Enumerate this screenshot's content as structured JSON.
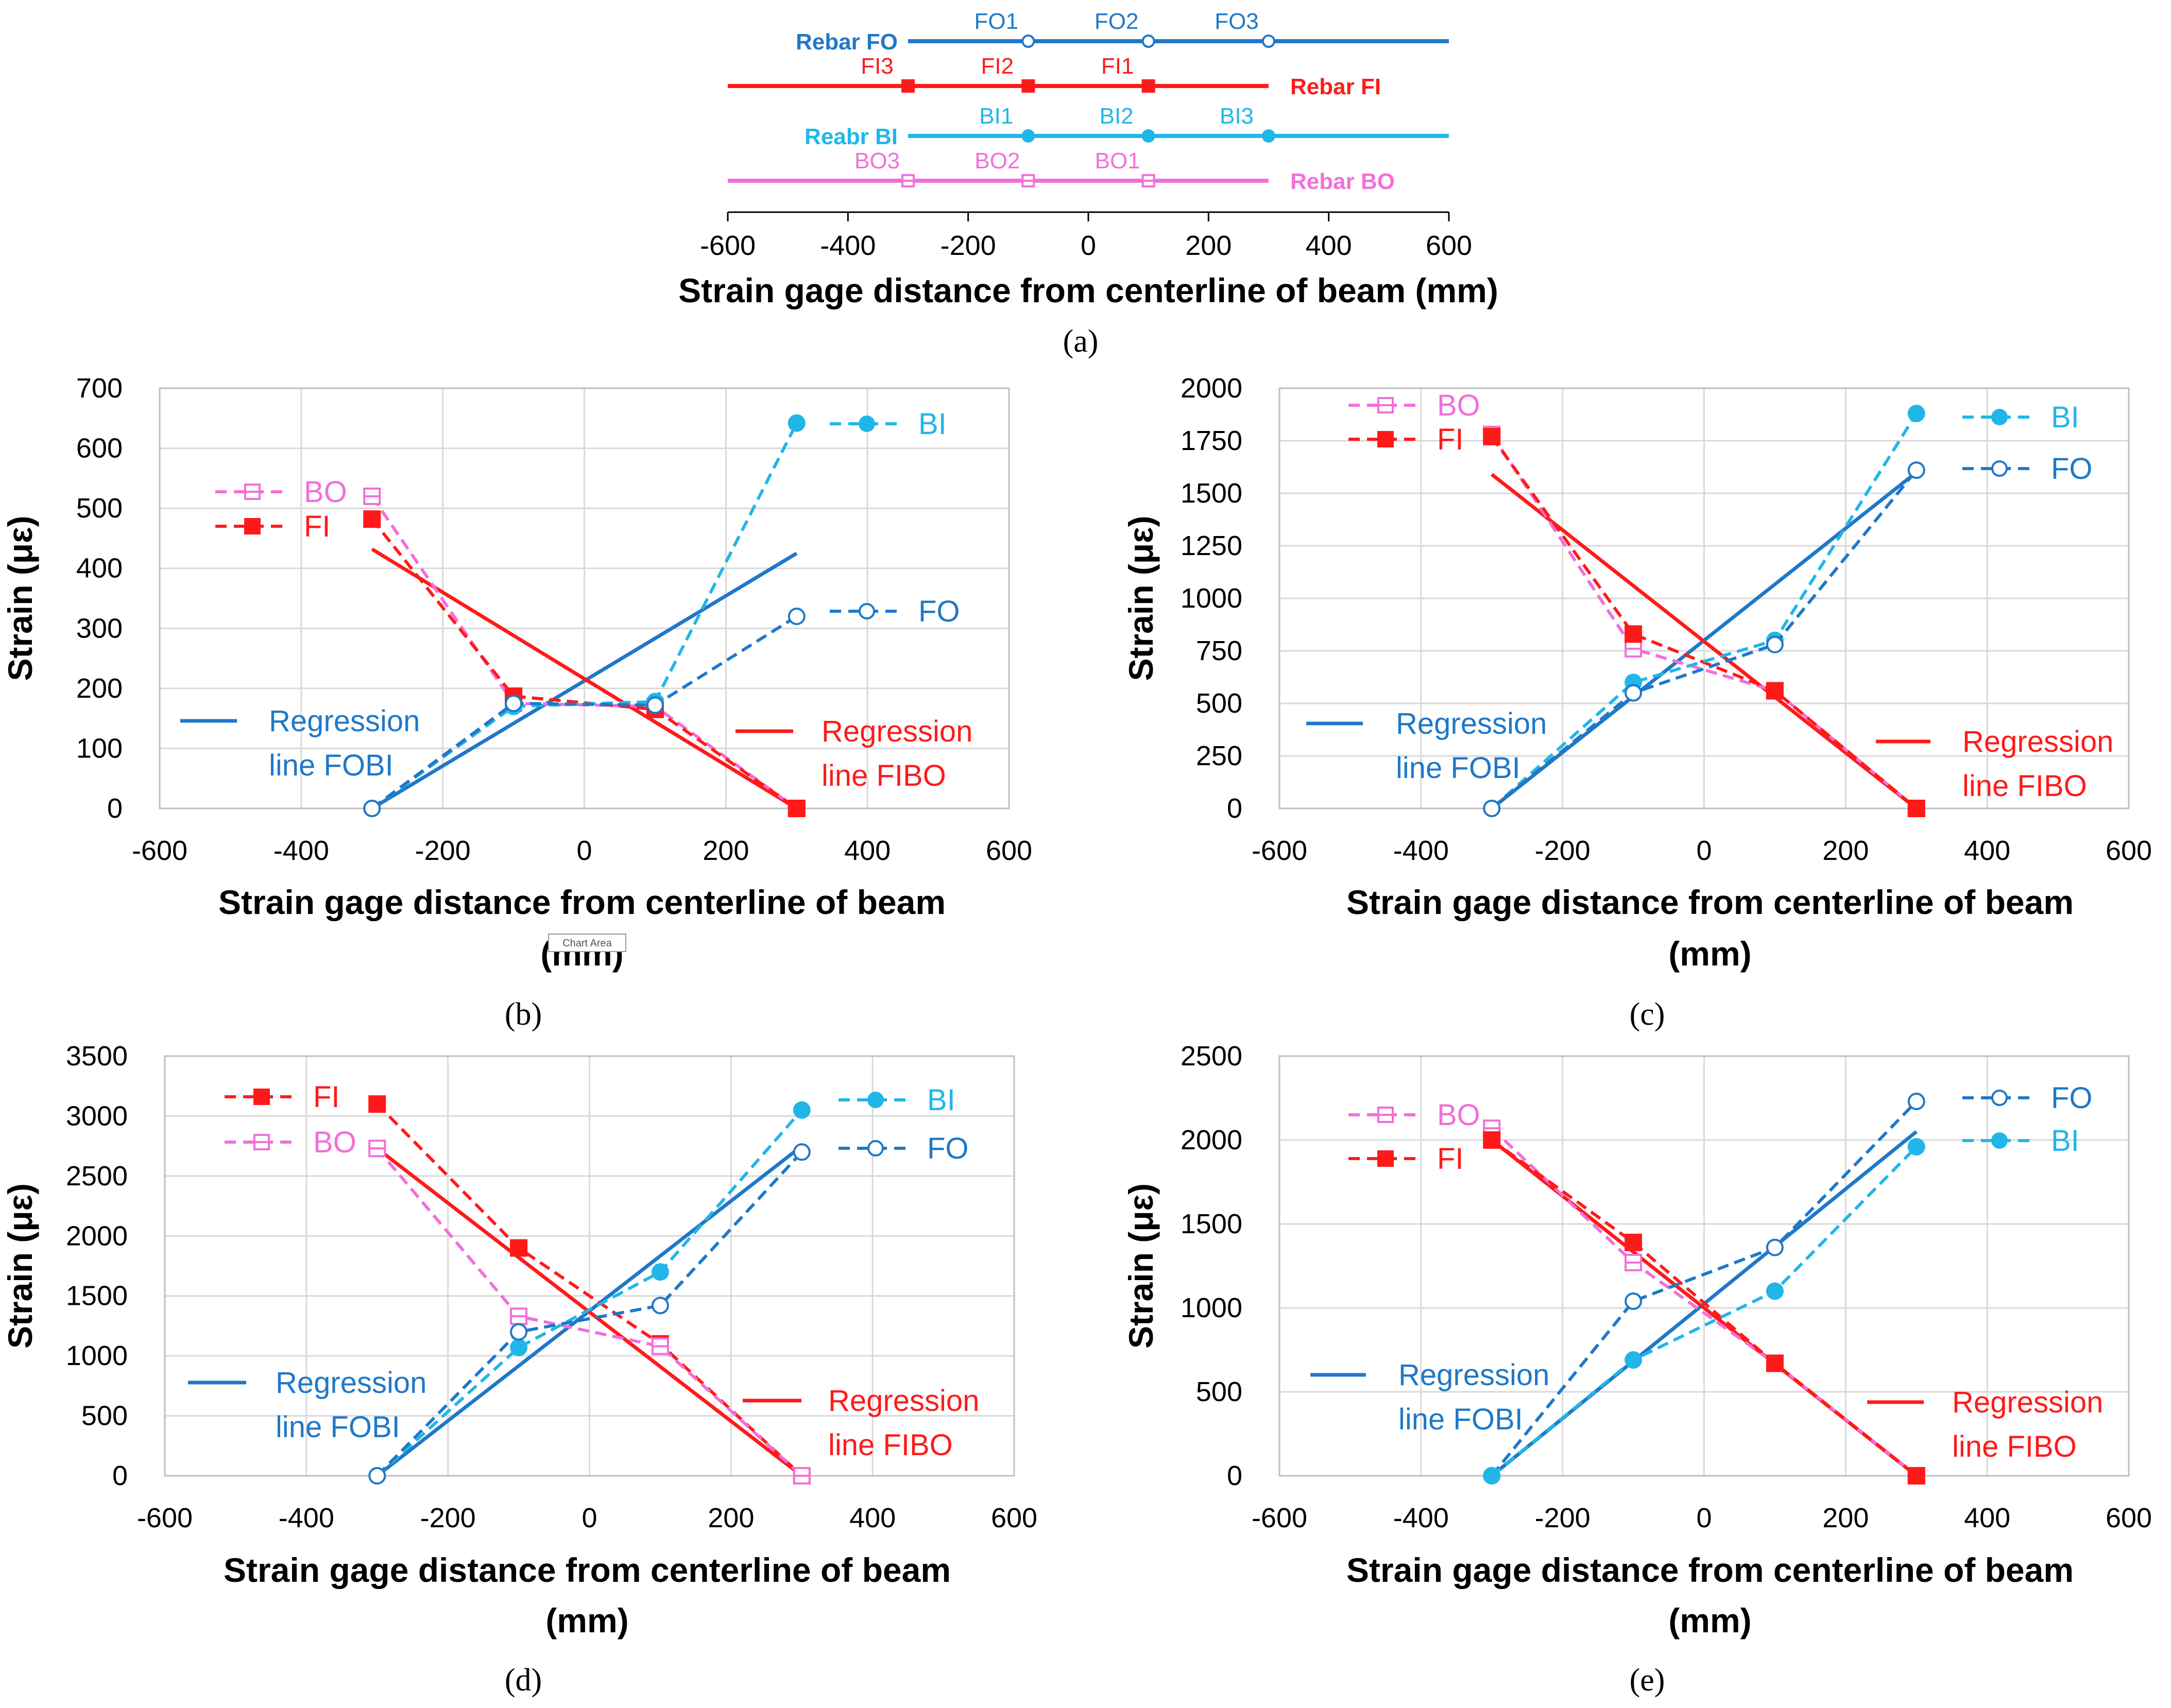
{
  "colors": {
    "FO": "#1f78c8",
    "FI": "#ff1a1a",
    "BI": "#21b6e8",
    "BO": "#f26fd9",
    "grid": "#d9d9d9"
  },
  "chart_data": [
    {
      "id": "a",
      "type": "scatter",
      "caption": "(a)",
      "xlabel": "Strain gage distance from centerline of beam (mm)",
      "xlim": [
        -600,
        600
      ],
      "xticks": [
        -600,
        -400,
        -200,
        0,
        200,
        400,
        600
      ],
      "rebars": [
        {
          "key": "FO",
          "name": "Rebar FO",
          "line_from": -300,
          "line_to": 600,
          "gauges": [
            {
              "label": "FO1",
              "x": -100
            },
            {
              "label": "FO2",
              "x": 100
            },
            {
              "label": "FO3",
              "x": 300
            }
          ]
        },
        {
          "key": "FI",
          "name": "Rebar FI",
          "line_from": -600,
          "line_to": 300,
          "gauges": [
            {
              "label": "FI3",
              "x": -300
            },
            {
              "label": "FI2",
              "x": -100
            },
            {
              "label": "FI1",
              "x": 100
            }
          ]
        },
        {
          "key": "BI",
          "name": "Reabr BI",
          "line_from": -300,
          "line_to": 600,
          "gauges": [
            {
              "label": "BI1",
              "x": -100
            },
            {
              "label": "BI2",
              "x": 100
            },
            {
              "label": "BI3",
              "x": 300
            }
          ]
        },
        {
          "key": "BO",
          "name": "Rebar BO",
          "line_from": -600,
          "line_to": 300,
          "gauges": [
            {
              "label": "BO3",
              "x": -300
            },
            {
              "label": "BO2",
              "x": -100
            },
            {
              "label": "BO1",
              "x": 100
            }
          ]
        }
      ]
    },
    {
      "id": "b",
      "type": "line",
      "caption": "(b)",
      "xlabel_lines": [
        "Strain gage distance from centerline of beam",
        "(mm)"
      ],
      "ylabel": "Strain (με)",
      "xlim": [
        -600,
        600
      ],
      "xticks": [
        -600,
        -400,
        -200,
        0,
        200,
        400,
        600
      ],
      "ylim": [
        0,
        700
      ],
      "yticks": [
        0,
        100,
        200,
        300,
        400,
        500,
        600,
        700
      ],
      "watermark": "Chart Area",
      "x": [
        -300,
        -100,
        100,
        300
      ],
      "series": [
        {
          "name": "BO",
          "values": [
            520,
            175,
            170,
            0
          ]
        },
        {
          "name": "FI",
          "values": [
            482,
            187,
            165,
            0
          ]
        },
        {
          "name": "BI",
          "values": [
            0,
            170,
            178,
            642
          ]
        },
        {
          "name": "FO",
          "values": [
            0,
            175,
            172,
            320
          ]
        }
      ],
      "regression": [
        {
          "name": "Regression line FOBI",
          "label_lines": [
            "Regression",
            "line FOBI"
          ],
          "from": [
            -300,
            0
          ],
          "to": [
            300,
            425
          ]
        },
        {
          "name": "Regression line FIBO",
          "label_lines": [
            "Regression",
            "line FIBO"
          ],
          "from": [
            -300,
            432
          ],
          "to": [
            300,
            0
          ]
        }
      ]
    },
    {
      "id": "c",
      "type": "line",
      "caption": "(c)",
      "xlabel_lines": [
        "Strain gage distance from centerline of beam",
        "(mm)"
      ],
      "ylabel": "Strain (με)",
      "xlim": [
        -600,
        600
      ],
      "xticks": [
        -600,
        -400,
        -200,
        0,
        200,
        400,
        600
      ],
      "ylim": [
        0,
        2000
      ],
      "yticks": [
        0,
        250,
        500,
        750,
        1000,
        1250,
        1500,
        1750,
        2000
      ],
      "x": [
        -300,
        -100,
        100,
        300
      ],
      "series": [
        {
          "name": "BO",
          "values": [
            1780,
            760,
            560,
            0
          ]
        },
        {
          "name": "FI",
          "values": [
            1770,
            830,
            560,
            0
          ]
        },
        {
          "name": "BI",
          "values": [
            0,
            600,
            800,
            1880
          ]
        },
        {
          "name": "FO",
          "values": [
            0,
            550,
            780,
            1610
          ]
        }
      ],
      "regression": [
        {
          "name": "Regression line FOBI",
          "label_lines": [
            "Regression",
            "line FOBI"
          ],
          "from": [
            -300,
            0
          ],
          "to": [
            300,
            1600
          ]
        },
        {
          "name": "Regression line FIBO",
          "label_lines": [
            "Regression",
            "line FIBO"
          ],
          "from": [
            -300,
            1590
          ],
          "to": [
            300,
            0
          ]
        }
      ]
    },
    {
      "id": "d",
      "type": "line",
      "caption": "(d)",
      "xlabel_lines": [
        "Strain gage distance from centerline of beam",
        "(mm)"
      ],
      "ylabel": "Strain (με)",
      "xlim": [
        -600,
        600
      ],
      "xticks": [
        -600,
        -400,
        -200,
        0,
        200,
        400,
        600
      ],
      "ylim": [
        0,
        3500
      ],
      "yticks": [
        0,
        500,
        1000,
        1500,
        2000,
        2500,
        3000,
        3500
      ],
      "x": [
        -300,
        -100,
        100,
        300
      ],
      "series": [
        {
          "name": "FI",
          "values": [
            3100,
            1900,
            1100,
            0
          ]
        },
        {
          "name": "BO",
          "values": [
            2730,
            1330,
            1080,
            0
          ]
        },
        {
          "name": "BI",
          "values": [
            0,
            1070,
            1700,
            3050
          ]
        },
        {
          "name": "FO",
          "values": [
            0,
            1200,
            1420,
            2700
          ]
        }
      ],
      "regression": [
        {
          "name": "Regression line FOBI",
          "label_lines": [
            "Regression",
            "line FOBI"
          ],
          "from": [
            -300,
            0
          ],
          "to": [
            300,
            2750
          ]
        },
        {
          "name": "Regression line FIBO",
          "label_lines": [
            "Regression",
            "line FIBO"
          ],
          "from": [
            -300,
            2730
          ],
          "to": [
            300,
            0
          ]
        }
      ]
    },
    {
      "id": "e",
      "type": "line",
      "caption": "(e)",
      "xlabel_lines": [
        "Strain gage distance from centerline of beam",
        "(mm)"
      ],
      "ylabel": "Strain (με)",
      "xlim": [
        -600,
        600
      ],
      "xticks": [
        -600,
        -400,
        -200,
        0,
        200,
        400,
        600
      ],
      "ylim": [
        0,
        2500
      ],
      "yticks": [
        0,
        500,
        1000,
        1500,
        2000,
        2500
      ],
      "x": [
        -300,
        -100,
        100,
        300
      ],
      "series": [
        {
          "name": "BO",
          "values": [
            2070,
            1270,
            670,
            0
          ]
        },
        {
          "name": "FI",
          "values": [
            2000,
            1390,
            670,
            0
          ]
        },
        {
          "name": "FO",
          "values": [
            0,
            1040,
            1360,
            2230
          ]
        },
        {
          "name": "BI",
          "values": [
            0,
            690,
            1100,
            1960
          ]
        }
      ],
      "regression": [
        {
          "name": "Regression line FOBI",
          "label_lines": [
            "Regression",
            "line FOBI"
          ],
          "from": [
            -300,
            0
          ],
          "to": [
            300,
            2050
          ]
        },
        {
          "name": "Regression line FIBO",
          "label_lines": [
            "Regression",
            "line FIBO"
          ],
          "from": [
            -300,
            2000
          ],
          "to": [
            300,
            0
          ]
        }
      ]
    }
  ]
}
